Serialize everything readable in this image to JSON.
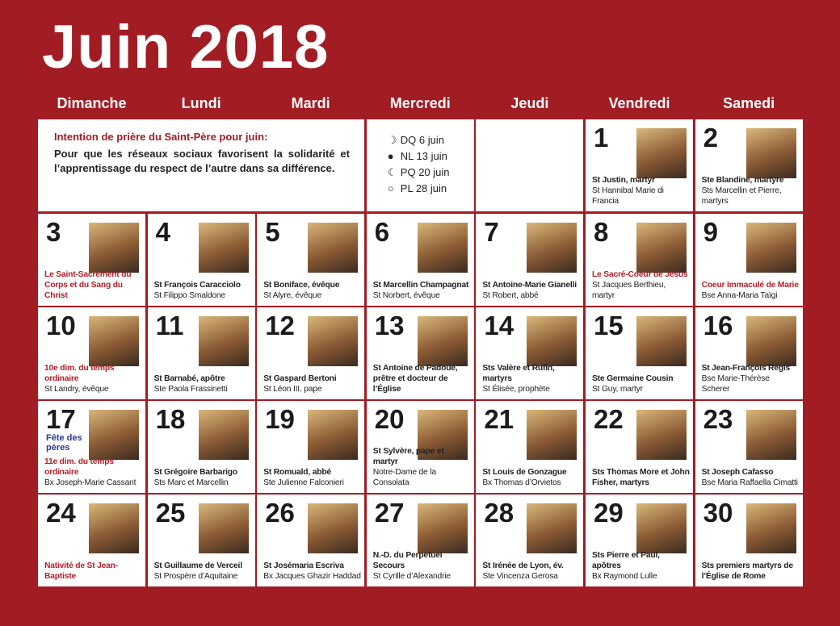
{
  "title": "Juin 2018",
  "weekdays": [
    "Dimanche",
    "Lundi",
    "Mardi",
    "Mercredi",
    "Jeudi",
    "Vendredi",
    "Samedi"
  ],
  "intention": {
    "heading": "Intention de prière du Saint-Père pour juin:",
    "text": "Pour que les réseaux sociaux favorisent la solidarité et l’apprentissage du respect de l’autre dans sa différence."
  },
  "moon_phases": [
    "DQ 6 juin",
    "NL 13 juin",
    "PQ 20 juin",
    "PL 28 juin"
  ],
  "days": [
    {
      "number": 1,
      "saint": "St Justin, martyr",
      "other": "St Hannibal Marie di Francia"
    },
    {
      "number": 2,
      "saint": "Ste Blandine, martyre",
      "other": "Sts Marcellin et Pierre, martyrs"
    },
    {
      "number": 3,
      "saint": "Le Saint-Sacrement du Corps et du Sang du Christ",
      "color": "#b3202a"
    },
    {
      "number": 4,
      "saint": "St François Caracciolo",
      "other": "St Filippo Smaldone"
    },
    {
      "number": 5,
      "saint": "St Boniface, évêque",
      "other": "St Alyre, évêque"
    },
    {
      "number": 6,
      "saint": "St Marcellin Champagnat",
      "other": "St Norbert, évêque"
    },
    {
      "number": 7,
      "saint": "St Antoine-Marie Gianelli",
      "other": "St Robert, abbé"
    },
    {
      "number": 8,
      "saint": "Le Sacré-Coeur de Jésus",
      "other": "St Jacques Berthieu, martyr",
      "color": "#b3202a"
    },
    {
      "number": 9,
      "saint": "Coeur Immaculé de Marie",
      "other": "Bse Anna-Maria Taïgi",
      "color": "#b3202a"
    },
    {
      "number": 10,
      "saint": "10e dim. du temps ordinaire",
      "other": "St Landry, évêque",
      "color": "#b3202a"
    },
    {
      "number": 11,
      "saint": "St Barnabé, apôtre",
      "other": "Ste Paola Frassinetti"
    },
    {
      "number": 12,
      "saint": "St Gaspard Bertoni",
      "other": "St Léon III, pape"
    },
    {
      "number": 13,
      "saint": "St Antoine de Padoue, prêtre et docteur de l’Église"
    },
    {
      "number": 14,
      "saint": "Sts Valère et Rufin, martyrs",
      "other": "St Élisée, prophète"
    },
    {
      "number": 15,
      "saint": "Ste Germaine Cousin",
      "other": "St Guy, martyr"
    },
    {
      "number": 16,
      "saint": "St Jean-François Régis",
      "other": "Bse Marie-Thérèse Scherer"
    },
    {
      "number": 17,
      "note": "Fête des pères",
      "saint": "11e dim. du temps ordinaire",
      "other": "Bx Joseph-Marie Cassant",
      "color": "#b3202a"
    },
    {
      "number": 18,
      "saint": "St Grégoire Barbarigo",
      "other": "Sts Marc et Marcellin"
    },
    {
      "number": 19,
      "saint": "St Romuald, abbé",
      "other": "Ste Julienne Falconieri"
    },
    {
      "number": 20,
      "saint": "St Sylvère, pape et martyr",
      "other": "Notre-Dame de la Consolata"
    },
    {
      "number": 21,
      "saint": "St Louis de Gonzague",
      "other": "Bx Thomas d’Orvietos"
    },
    {
      "number": 22,
      "saint": "Sts Thomas More et John Fisher, martyrs"
    },
    {
      "number": 23,
      "saint": "St Joseph Cafasso",
      "other": "Bse Maria Raffaella Cimatti"
    },
    {
      "number": 24,
      "saint": "Nativité de St Jean-Baptiste",
      "color": "#b3202a"
    },
    {
      "number": 25,
      "saint": "St Guillaume de Verceil",
      "other": "St Prospère d’Aquitaine"
    },
    {
      "number": 26,
      "saint": "St Josémaria Escriva",
      "other": "Bx Jacques Ghazir Haddad"
    },
    {
      "number": 27,
      "saint": "N.-D. du Perpétuel Secours",
      "other": "St Cyrille d’Alexandrie"
    },
    {
      "number": 28,
      "saint": "St Irénée de Lyon, év.",
      "other": "Ste Vincenza Gerosa"
    },
    {
      "number": 29,
      "saint": "Sts Pierre et Paul, apôtres",
      "other": "Bx Raymond Lulle"
    },
    {
      "number": 30,
      "saint": "Sts premiers martyrs de l’Église de Rome"
    }
  ]
}
